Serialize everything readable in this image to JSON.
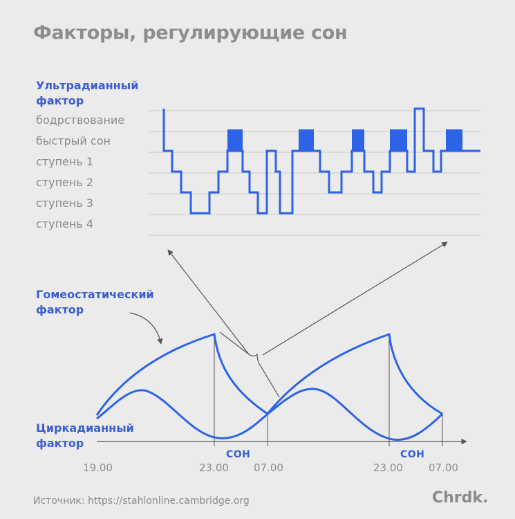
{
  "title": "Факторы, регулирующие сон",
  "ultradian_label": [
    "Ультрадианный",
    "фактор"
  ],
  "stages": [
    "бодрствование",
    "быстрый сон",
    "ступень 1",
    "ступень 2",
    "ступень 3",
    "ступень 4"
  ],
  "homeostatic_label": [
    "Гомеостатический",
    "фактор"
  ],
  "circadian_label": [
    "Циркадианный",
    "фактор"
  ],
  "time_ticks": [
    "19.00",
    "23.00",
    "07.00",
    "23.00",
    "07.00"
  ],
  "sleep_labels": [
    "СОН",
    "СОН"
  ],
  "source": "Источник: https://stahlonline.cambridge.org",
  "logo": "Chrdk.",
  "colors": {
    "blue": "#2d63e6",
    "label_blue": "#3a5fd4",
    "gray": "#8a8a8a",
    "background": "#ebebeb"
  }
}
